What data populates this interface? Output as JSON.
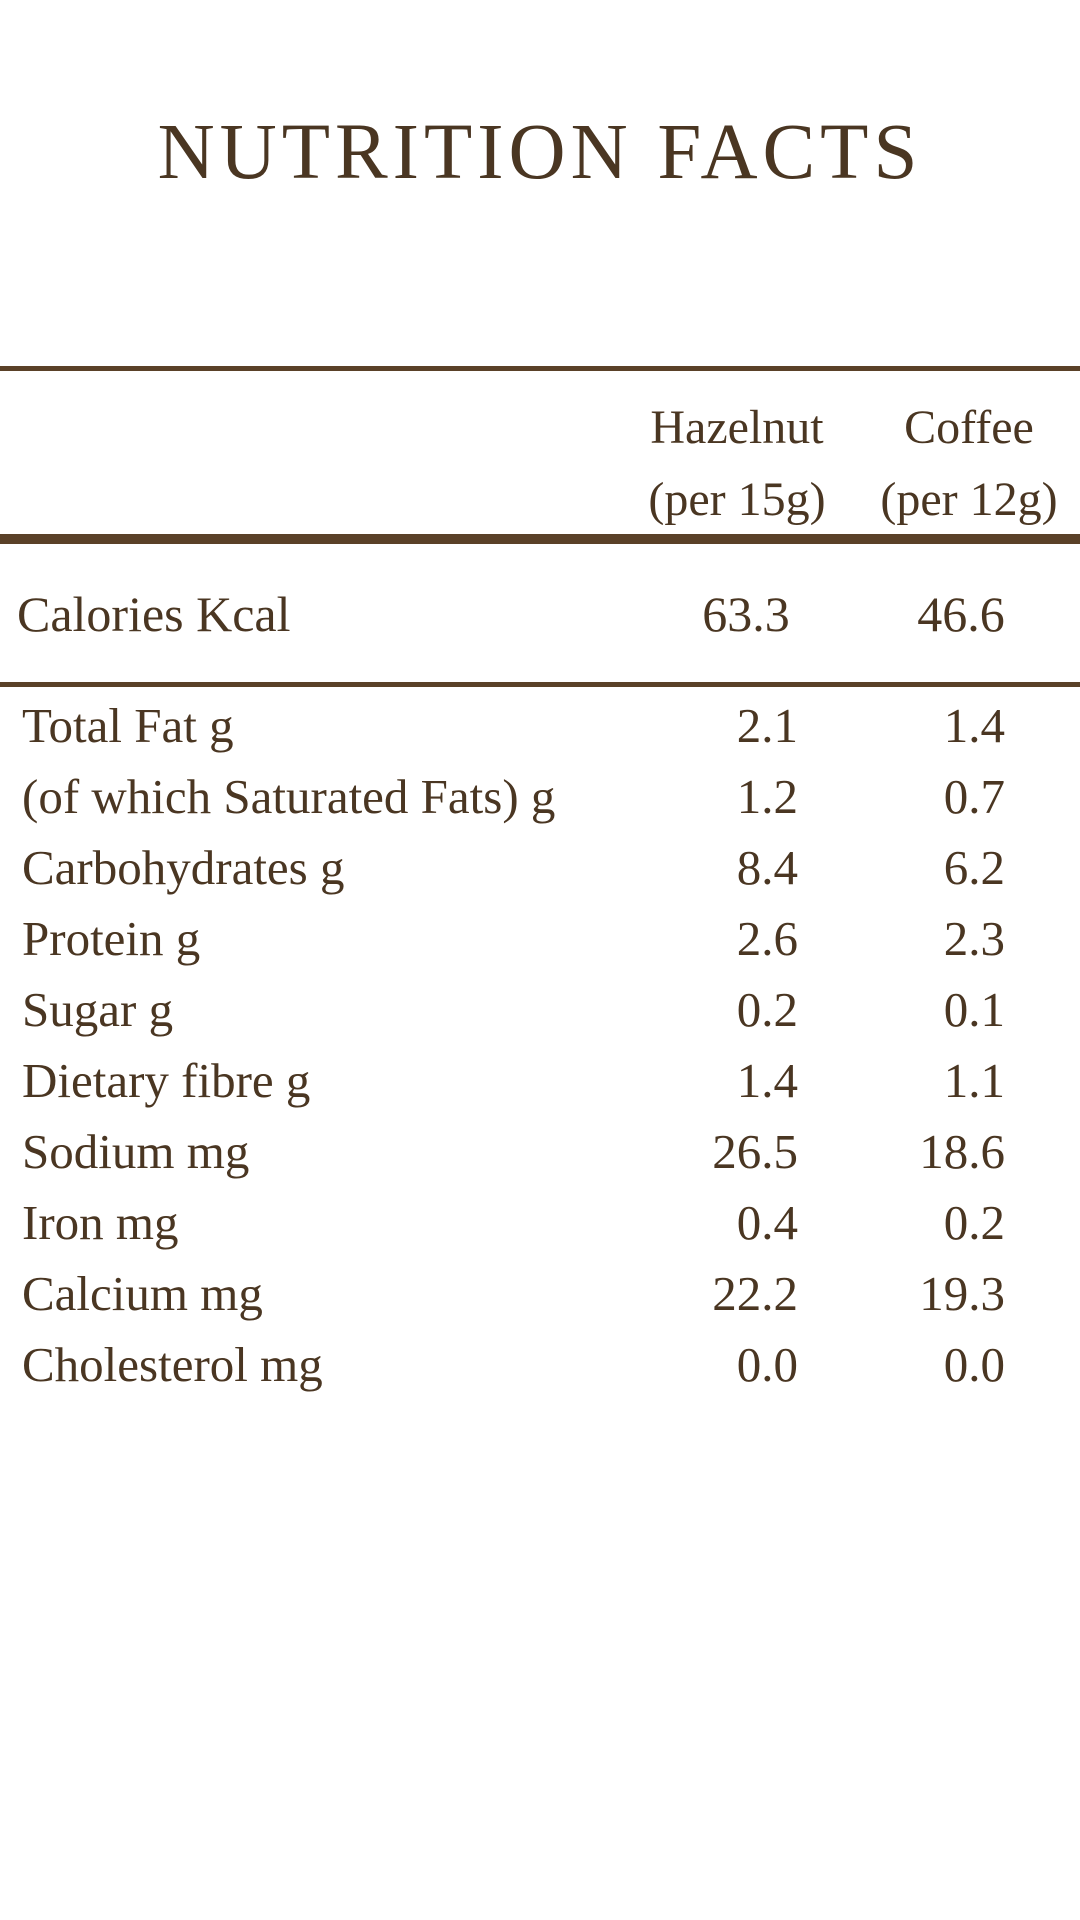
{
  "title": "NUTRITION FACTS",
  "columns": [
    {
      "name": "Hazelnut",
      "serving": "(per 15g)"
    },
    {
      "name": "Coffee",
      "serving": "(per 12g)"
    }
  ],
  "calories": {
    "label": "Calories Kcal",
    "hazelnut": "63.3",
    "coffee": "46.6"
  },
  "nutrients": [
    {
      "label": "Total Fat g",
      "hazelnut": "2.1",
      "coffee": "1.4"
    },
    {
      "label": "(of which Saturated Fats) g",
      "hazelnut": "1.2",
      "coffee": "0.7"
    },
    {
      "label": "Carbohydrates g",
      "hazelnut": "8.4",
      "coffee": "6.2"
    },
    {
      "label": "Protein g",
      "hazelnut": "2.6",
      "coffee": "2.3"
    },
    {
      "label": "Sugar g",
      "hazelnut": "0.2",
      "coffee": "0.1"
    },
    {
      "label": "Dietary fibre g",
      "hazelnut": "1.4",
      "coffee": "1.1"
    },
    {
      "label": "Sodium mg",
      "hazelnut": "26.5",
      "coffee": "18.6"
    },
    {
      "label": "Iron mg",
      "hazelnut": "0.4",
      "coffee": "0.2"
    },
    {
      "label": "Calcium mg",
      "hazelnut": "22.2",
      "coffee": "19.3"
    },
    {
      "label": "Cholesterol mg",
      "hazelnut": "0.0",
      "coffee": "0.0"
    }
  ],
  "colors": {
    "text": "#4a3622",
    "rule": "#5a4128",
    "background": "#ffffff"
  }
}
